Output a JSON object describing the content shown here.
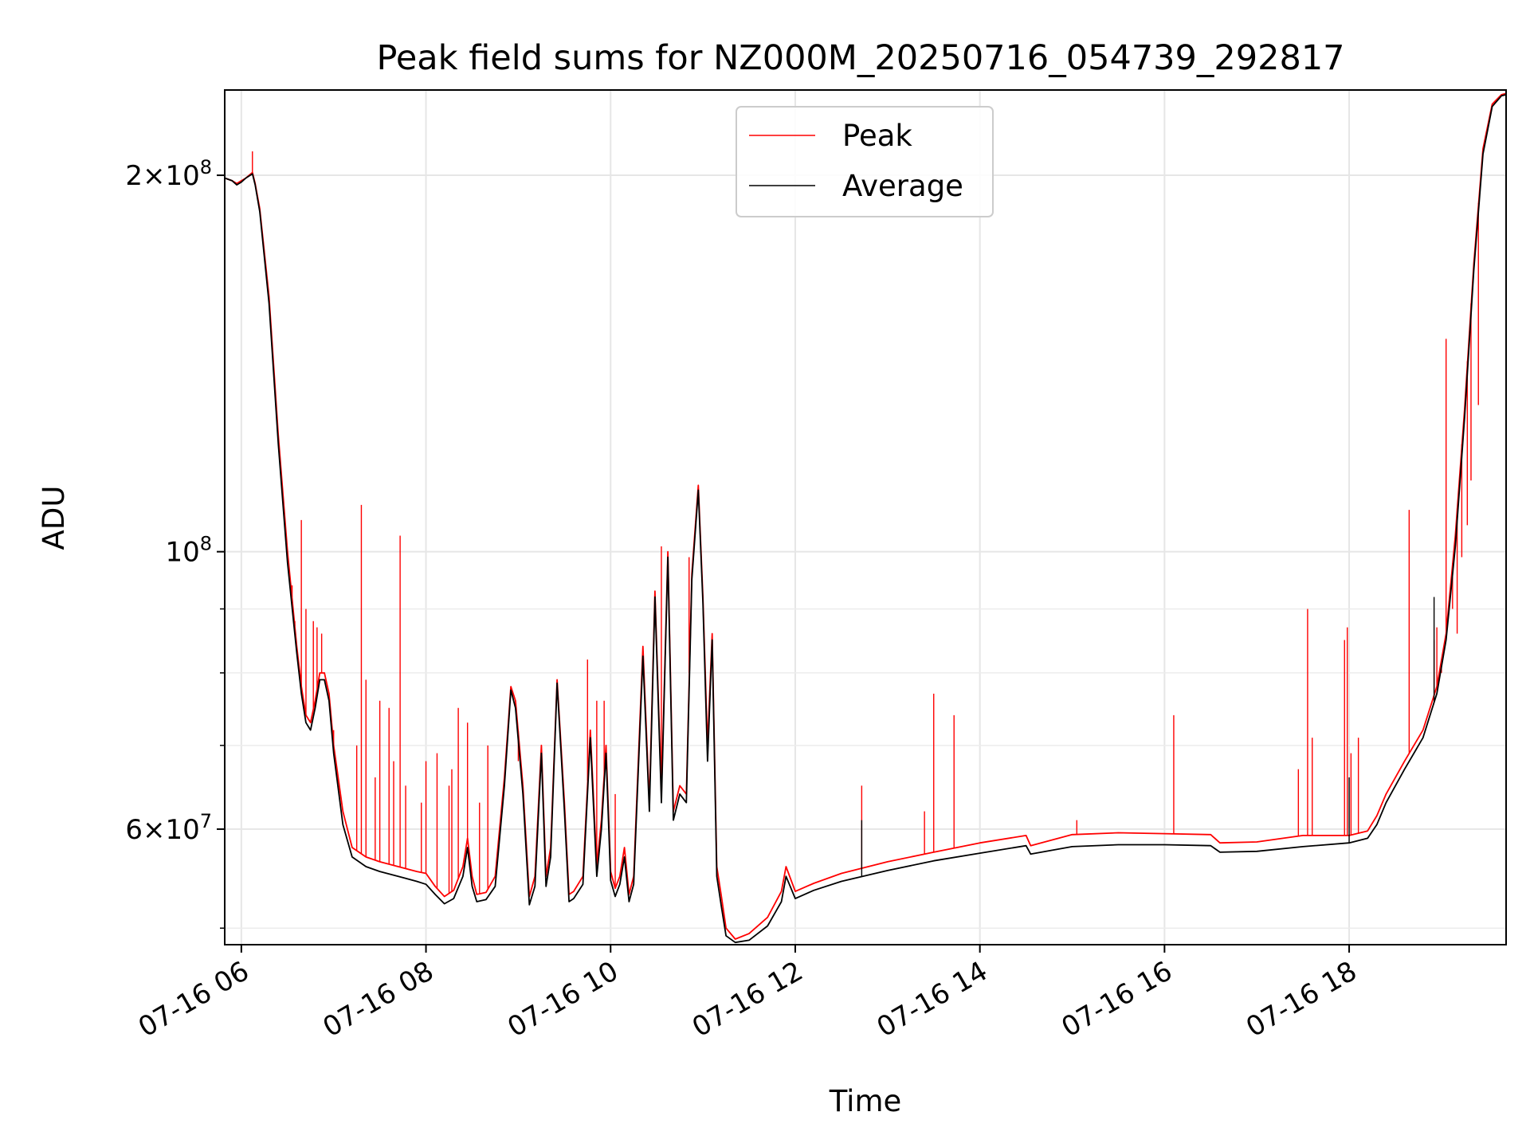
{
  "chart_data": {
    "type": "line",
    "title": "Peak field sums for NZ000M_20250716_054739_292817",
    "xlabel": "Time",
    "ylabel": "ADU",
    "x_ticks": [
      "07-16 06",
      "07-16 08",
      "07-16 10",
      "07-16 12",
      "07-16 14",
      "07-16 16",
      "07-16 18"
    ],
    "y_ticks": [
      {
        "value": 200000000,
        "base": "2×10",
        "exp": "8"
      },
      {
        "value": 100000000,
        "base": "10",
        "exp": "8"
      },
      {
        "value": 60000000,
        "base": "6×10",
        "exp": "7"
      }
    ],
    "y_scale": "log",
    "ylim": [
      48500000,
      234000000
    ],
    "xlim_hours": [
      5.82,
      19.7
    ],
    "grid": true,
    "legend_position": "top-center",
    "series": [
      {
        "name": "Peak",
        "color": "#ff0000",
        "points": [
          [
            5.82,
            199
          ],
          [
            5.9,
            198
          ],
          [
            5.95,
            197
          ],
          [
            6.0,
            198
          ],
          [
            6.05,
            199
          ],
          [
            6.12,
            201
          ],
          [
            6.15,
            197
          ],
          [
            6.2,
            188
          ],
          [
            6.3,
            160
          ],
          [
            6.4,
            124
          ],
          [
            6.5,
            100
          ],
          [
            6.6,
            84
          ],
          [
            6.65,
            78
          ],
          [
            6.7,
            74
          ],
          [
            6.75,
            73
          ],
          [
            6.8,
            76
          ],
          [
            6.85,
            80
          ],
          [
            6.9,
            80
          ],
          [
            6.95,
            77
          ],
          [
            7.0,
            70
          ],
          [
            7.1,
            62
          ],
          [
            7.2,
            58
          ],
          [
            7.35,
            57
          ],
          [
            7.5,
            56.5
          ],
          [
            7.7,
            56
          ],
          [
            7.9,
            55.5
          ],
          [
            8.0,
            55.3
          ],
          [
            8.1,
            54
          ],
          [
            8.2,
            53
          ],
          [
            8.3,
            53.6
          ],
          [
            8.4,
            56
          ],
          [
            8.45,
            59
          ],
          [
            8.5,
            55
          ],
          [
            8.55,
            53.2
          ],
          [
            8.65,
            53.4
          ],
          [
            8.75,
            55
          ],
          [
            8.85,
            66
          ],
          [
            8.92,
            78
          ],
          [
            8.97,
            76
          ],
          [
            9.05,
            65
          ],
          [
            9.12,
            53
          ],
          [
            9.18,
            55
          ],
          [
            9.25,
            70
          ],
          [
            9.3,
            55
          ],
          [
            9.35,
            58
          ],
          [
            9.42,
            79
          ],
          [
            9.5,
            63
          ],
          [
            9.55,
            53.2
          ],
          [
            9.6,
            53.5
          ],
          [
            9.7,
            55
          ],
          [
            9.78,
            72
          ],
          [
            9.85,
            56
          ],
          [
            9.9,
            61
          ],
          [
            9.95,
            70
          ],
          [
            10.0,
            55.5
          ],
          [
            10.05,
            53.8
          ],
          [
            10.1,
            55
          ],
          [
            10.15,
            58
          ],
          [
            10.2,
            53.2
          ],
          [
            10.25,
            55
          ],
          [
            10.35,
            84
          ],
          [
            10.42,
            63
          ],
          [
            10.48,
            93
          ],
          [
            10.55,
            64
          ],
          [
            10.62,
            100
          ],
          [
            10.68,
            62
          ],
          [
            10.75,
            65
          ],
          [
            10.82,
            64
          ],
          [
            10.88,
            96
          ],
          [
            10.95,
            113
          ],
          [
            11.0,
            92
          ],
          [
            11.05,
            70
          ],
          [
            11.1,
            86
          ],
          [
            11.15,
            56
          ],
          [
            11.2,
            53
          ],
          [
            11.25,
            50
          ],
          [
            11.35,
            49
          ],
          [
            11.5,
            49.5
          ],
          [
            11.7,
            51
          ],
          [
            11.85,
            53.5
          ],
          [
            11.9,
            56
          ],
          [
            12.0,
            53.5
          ],
          [
            12.2,
            54.3
          ],
          [
            12.5,
            55.3
          ],
          [
            13.0,
            56.5
          ],
          [
            13.5,
            57.5
          ],
          [
            14.0,
            58.5
          ],
          [
            14.5,
            59.3
          ],
          [
            14.55,
            58.2
          ],
          [
            15.0,
            59.4
          ],
          [
            15.5,
            59.6
          ],
          [
            16.0,
            59.5
          ],
          [
            16.5,
            59.4
          ],
          [
            16.6,
            58.5
          ],
          [
            17.0,
            58.6
          ],
          [
            17.5,
            59.3
          ],
          [
            18.0,
            59.3
          ],
          [
            18.2,
            59.8
          ],
          [
            18.3,
            61.5
          ],
          [
            18.4,
            64
          ],
          [
            18.6,
            68
          ],
          [
            18.8,
            72
          ],
          [
            18.95,
            78
          ],
          [
            19.05,
            86
          ],
          [
            19.15,
            103
          ],
          [
            19.25,
            130
          ],
          [
            19.35,
            170
          ],
          [
            19.45,
            210
          ],
          [
            19.55,
            228
          ],
          [
            19.65,
            232
          ],
          [
            19.7,
            232.5
          ]
        ],
        "spikes": [
          [
            6.12,
            209
          ],
          [
            6.55,
            94
          ],
          [
            6.58,
            88
          ],
          [
            6.65,
            106
          ],
          [
            6.7,
            90
          ],
          [
            6.78,
            88
          ],
          [
            6.82,
            87
          ],
          [
            6.87,
            86
          ],
          [
            7.0,
            72
          ],
          [
            7.25,
            70
          ],
          [
            7.3,
            109
          ],
          [
            7.35,
            79
          ],
          [
            7.45,
            66
          ],
          [
            7.5,
            76
          ],
          [
            7.6,
            75
          ],
          [
            7.65,
            68
          ],
          [
            7.72,
            103
          ],
          [
            7.78,
            65
          ],
          [
            7.95,
            63
          ],
          [
            8.0,
            68
          ],
          [
            8.12,
            69
          ],
          [
            8.25,
            65
          ],
          [
            8.28,
            67
          ],
          [
            8.35,
            75
          ],
          [
            8.45,
            73
          ],
          [
            8.58,
            63
          ],
          [
            8.67,
            70
          ],
          [
            9.0,
            68
          ],
          [
            9.75,
            82
          ],
          [
            9.85,
            76
          ],
          [
            9.93,
            76
          ],
          [
            10.05,
            64
          ],
          [
            10.55,
            101
          ],
          [
            10.85,
            99
          ],
          [
            12.72,
            65
          ],
          [
            13.4,
            62
          ],
          [
            13.5,
            77
          ],
          [
            13.72,
            74
          ],
          [
            15.05,
            61
          ],
          [
            16.1,
            74
          ],
          [
            17.45,
            67
          ],
          [
            17.55,
            90
          ],
          [
            17.6,
            71
          ],
          [
            17.95,
            85
          ],
          [
            17.98,
            87
          ],
          [
            18.02,
            69
          ],
          [
            18.1,
            71
          ],
          [
            18.65,
            108
          ],
          [
            18.92,
            85
          ],
          [
            18.95,
            87
          ],
          [
            19.0,
            80
          ],
          [
            19.05,
            148
          ],
          [
            19.12,
            90
          ],
          [
            19.17,
            86
          ],
          [
            19.22,
            99
          ],
          [
            19.28,
            105
          ],
          [
            19.32,
            114
          ],
          [
            19.4,
            131
          ]
        ]
      },
      {
        "name": "Average",
        "color": "#000000",
        "points": [
          [
            5.82,
            199
          ],
          [
            5.9,
            198
          ],
          [
            5.95,
            196.5
          ],
          [
            6.0,
            197.5
          ],
          [
            6.05,
            199
          ],
          [
            6.12,
            200.5
          ],
          [
            6.15,
            196.5
          ],
          [
            6.2,
            187
          ],
          [
            6.3,
            158
          ],
          [
            6.4,
            122
          ],
          [
            6.5,
            98
          ],
          [
            6.6,
            83
          ],
          [
            6.65,
            77
          ],
          [
            6.7,
            73
          ],
          [
            6.75,
            72
          ],
          [
            6.8,
            75
          ],
          [
            6.85,
            79
          ],
          [
            6.9,
            79
          ],
          [
            6.95,
            76
          ],
          [
            7.0,
            69
          ],
          [
            7.1,
            60.5
          ],
          [
            7.2,
            57
          ],
          [
            7.35,
            56
          ],
          [
            7.5,
            55.5
          ],
          [
            7.7,
            55
          ],
          [
            7.9,
            54.5
          ],
          [
            8.0,
            54.2
          ],
          [
            8.1,
            53.2
          ],
          [
            8.2,
            52.3
          ],
          [
            8.3,
            52.8
          ],
          [
            8.4,
            55
          ],
          [
            8.45,
            58
          ],
          [
            8.5,
            54
          ],
          [
            8.55,
            52.5
          ],
          [
            8.65,
            52.7
          ],
          [
            8.75,
            54
          ],
          [
            8.85,
            65
          ],
          [
            8.92,
            77.5
          ],
          [
            8.97,
            75
          ],
          [
            9.05,
            64
          ],
          [
            9.12,
            52.2
          ],
          [
            9.18,
            54
          ],
          [
            9.25,
            69
          ],
          [
            9.3,
            54
          ],
          [
            9.35,
            57
          ],
          [
            9.42,
            78.5
          ],
          [
            9.5,
            62
          ],
          [
            9.55,
            52.5
          ],
          [
            9.6,
            52.8
          ],
          [
            9.7,
            54.2
          ],
          [
            9.78,
            71
          ],
          [
            9.85,
            55
          ],
          [
            9.9,
            60
          ],
          [
            9.95,
            69
          ],
          [
            10.0,
            54.6
          ],
          [
            10.05,
            53
          ],
          [
            10.1,
            54.2
          ],
          [
            10.15,
            57
          ],
          [
            10.2,
            52.5
          ],
          [
            10.25,
            54.2
          ],
          [
            10.35,
            82.5
          ],
          [
            10.42,
            62
          ],
          [
            10.48,
            92
          ],
          [
            10.55,
            63
          ],
          [
            10.62,
            99
          ],
          [
            10.68,
            61
          ],
          [
            10.75,
            64
          ],
          [
            10.82,
            63
          ],
          [
            10.88,
            95
          ],
          [
            10.95,
            112
          ],
          [
            11.0,
            91
          ],
          [
            11.05,
            68
          ],
          [
            11.1,
            85
          ],
          [
            11.15,
            55
          ],
          [
            11.2,
            52
          ],
          [
            11.25,
            49.3
          ],
          [
            11.35,
            48.7
          ],
          [
            11.5,
            48.9
          ],
          [
            11.7,
            50.2
          ],
          [
            11.85,
            52.5
          ],
          [
            11.9,
            55
          ],
          [
            12.0,
            52.8
          ],
          [
            12.2,
            53.6
          ],
          [
            12.5,
            54.5
          ],
          [
            13.0,
            55.6
          ],
          [
            13.5,
            56.6
          ],
          [
            14.0,
            57.4
          ],
          [
            14.5,
            58.2
          ],
          [
            14.55,
            57.3
          ],
          [
            15.0,
            58.1
          ],
          [
            15.5,
            58.3
          ],
          [
            16.0,
            58.3
          ],
          [
            16.5,
            58.2
          ],
          [
            16.6,
            57.5
          ],
          [
            17.0,
            57.6
          ],
          [
            17.5,
            58.1
          ],
          [
            18.0,
            58.5
          ],
          [
            18.2,
            59
          ],
          [
            18.3,
            60.5
          ],
          [
            18.4,
            63
          ],
          [
            18.6,
            67
          ],
          [
            18.8,
            71
          ],
          [
            18.95,
            77
          ],
          [
            19.05,
            85
          ],
          [
            19.15,
            101
          ],
          [
            19.25,
            128
          ],
          [
            19.35,
            168
          ],
          [
            19.45,
            208
          ],
          [
            19.55,
            227
          ],
          [
            19.65,
            231.5
          ],
          [
            19.7,
            232
          ]
        ],
        "spikes": [
          [
            12.72,
            61
          ],
          [
            18.0,
            66
          ],
          [
            18.92,
            92
          ]
        ]
      }
    ]
  }
}
